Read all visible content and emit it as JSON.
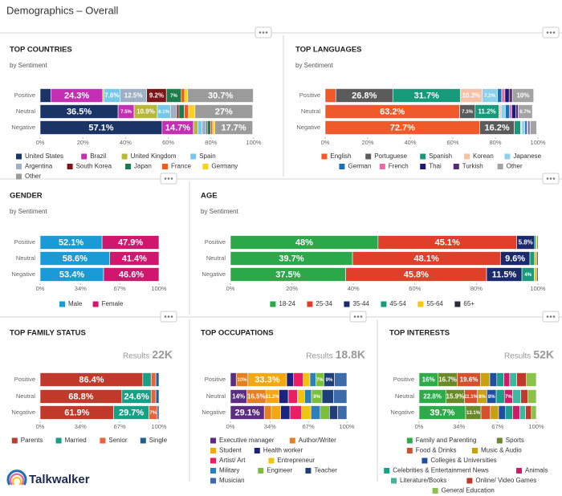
{
  "header": {
    "title": "Demographics – Overall"
  },
  "footer": {
    "brand": "Talkwalker"
  },
  "chart_data": [
    {
      "type": "bar",
      "orientation": "horizontal",
      "stacked": true,
      "title": "TOP COUNTRIES",
      "subtitle": "by Sentiment",
      "categories": [
        "Positive",
        "Neutral",
        "Negative"
      ],
      "xlim": [
        0,
        100
      ],
      "xticks": [
        {
          "value": 0,
          "label": "0%"
        },
        {
          "value": 20,
          "label": "20%"
        },
        {
          "value": 40,
          "label": "40%"
        },
        {
          "value": 60,
          "label": "60%"
        },
        {
          "value": 80,
          "label": "80%"
        },
        {
          "value": 100,
          "label": "100%"
        }
      ],
      "series": [
        {
          "name": "United States",
          "color": "#1b3466",
          "values": [
            5,
            36.5,
            57.1
          ],
          "value_labels": [
            null,
            "36.5%",
            "57.1%"
          ]
        },
        {
          "name": "Brazil",
          "color": "#c42fb4",
          "values": [
            24.3,
            7.5,
            14.7
          ],
          "value_labels": [
            "24.3%",
            "7.5%",
            "14.7%"
          ]
        },
        {
          "name": "United Kingdom",
          "color": "#b7b935",
          "values": [
            0.5,
            10.9,
            2
          ],
          "value_labels": [
            null,
            "10.9%",
            null
          ]
        },
        {
          "name": "Spain",
          "color": "#74c8ea",
          "values": [
            7.6,
            6.1,
            2
          ],
          "value_labels": [
            "7.6%",
            "6.1%",
            null
          ]
        },
        {
          "name": "Argentina",
          "color": "#9fb0c4",
          "values": [
            12.5,
            3,
            2
          ],
          "value_labels": [
            "12.5%",
            null,
            null
          ]
        },
        {
          "name": "South Korea",
          "color": "#7a1518",
          "values": [
            9.2,
            1,
            0.5
          ],
          "value_labels": [
            "9.2%",
            null,
            null
          ]
        },
        {
          "name": "Japan",
          "color": "#1e7b4b",
          "values": [
            7,
            2.5,
            1.5
          ],
          "value_labels": [
            "7%",
            null,
            null
          ]
        },
        {
          "name": "France",
          "color": "#f05a1e",
          "values": [
            1.5,
            2,
            1
          ],
          "value_labels": [
            null,
            null,
            null
          ]
        },
        {
          "name": "Germany",
          "color": "#f7d31e",
          "values": [
            1.5,
            3,
            1
          ],
          "value_labels": [
            null,
            null,
            null
          ]
        },
        {
          "name": "Other",
          "color": "#9b9b9b",
          "values": [
            30.7,
            27,
            17.7
          ],
          "value_labels": [
            "30.7%",
            "27%",
            "17.7%"
          ]
        }
      ]
    },
    {
      "type": "bar",
      "orientation": "horizontal",
      "stacked": true,
      "title": "TOP LANGUAGES",
      "subtitle": "by Sentiment",
      "categories": [
        "Positive",
        "Neutral",
        "Negative"
      ],
      "xlim": [
        0,
        100
      ],
      "xticks": [
        {
          "value": 0,
          "label": "0%"
        },
        {
          "value": 20,
          "label": "20%"
        },
        {
          "value": 40,
          "label": "40%"
        },
        {
          "value": 60,
          "label": "60%"
        },
        {
          "value": 80,
          "label": "80%"
        },
        {
          "value": 100,
          "label": "100%"
        }
      ],
      "series": [
        {
          "name": "English",
          "color": "#f05a2a",
          "values": [
            5,
            63.2,
            72.7
          ],
          "value_labels": [
            null,
            "63.2%",
            "72.7%"
          ]
        },
        {
          "name": "Portuguese",
          "color": "#5b5b5b",
          "values": [
            26.8,
            7.3,
            16.2
          ],
          "value_labels": [
            "26.8%",
            "7.3%",
            "16.2%"
          ]
        },
        {
          "name": "Spanish",
          "color": "#179a7a",
          "values": [
            31.7,
            11.2,
            3
          ],
          "value_labels": [
            "31.7%",
            "11.2%",
            null
          ]
        },
        {
          "name": "Korean",
          "color": "#f5c1a9",
          "values": [
            10.3,
            1,
            0.5
          ],
          "value_labels": [
            "10.3%",
            null,
            null
          ]
        },
        {
          "name": "Japanese",
          "color": "#8fd1eb",
          "values": [
            7.2,
            2,
            1.5
          ],
          "value_labels": [
            "7.2%",
            null,
            null
          ]
        },
        {
          "name": "German",
          "color": "#1f6fb3",
          "values": [
            2,
            2,
            1
          ],
          "value_labels": [
            null,
            null,
            null
          ]
        },
        {
          "name": "French",
          "color": "#e86aa8",
          "values": [
            1.5,
            1,
            0.5
          ],
          "value_labels": [
            null,
            null,
            null
          ]
        },
        {
          "name": "Thai",
          "color": "#1a1a7a",
          "values": [
            2,
            2,
            0.5
          ],
          "value_labels": [
            null,
            null,
            null
          ]
        },
        {
          "name": "Turkish",
          "color": "#5a2a7a",
          "values": [
            1.5,
            1,
            0.5
          ],
          "value_labels": [
            null,
            null,
            null
          ]
        },
        {
          "name": "Other",
          "color": "#a3a3a3",
          "values": [
            10,
            6.7,
            3
          ],
          "value_labels": [
            "10%",
            "6.7%",
            null
          ]
        }
      ]
    },
    {
      "type": "bar",
      "orientation": "horizontal",
      "stacked": true,
      "title": "GENDER",
      "subtitle": "by Sentiment",
      "categories": [
        "Positive",
        "Neutral",
        "Negative"
      ],
      "xlim": [
        0,
        100
      ],
      "xticks": [
        {
          "value": 0,
          "label": "0%"
        },
        {
          "value": 34,
          "label": "34%"
        },
        {
          "value": 67,
          "label": "67%"
        },
        {
          "value": 100,
          "label": "100%"
        }
      ],
      "series": [
        {
          "name": "Male",
          "color": "#1a9ad6",
          "values": [
            52.1,
            58.6,
            53.4
          ],
          "value_labels": [
            "52.1%",
            "58.6%",
            "53.4%"
          ]
        },
        {
          "name": "Female",
          "color": "#d1166e",
          "values": [
            47.9,
            41.4,
            46.6
          ],
          "value_labels": [
            "47.9%",
            "41.4%",
            "46.6%"
          ]
        }
      ]
    },
    {
      "type": "bar",
      "orientation": "horizontal",
      "stacked": true,
      "title": "AGE",
      "subtitle": "by Sentiment",
      "categories": [
        "Positive",
        "Neutral",
        "Negative"
      ],
      "xlim": [
        0,
        100
      ],
      "xticks": [
        {
          "value": 0,
          "label": "0%"
        },
        {
          "value": 20,
          "label": "20%"
        },
        {
          "value": 40,
          "label": "40%"
        },
        {
          "value": 60,
          "label": "60%"
        },
        {
          "value": 80,
          "label": "80%"
        },
        {
          "value": 100,
          "label": "100%"
        }
      ],
      "series": [
        {
          "name": "18-24",
          "color": "#2aa84a",
          "values": [
            48,
            39.7,
            37.5
          ],
          "value_labels": [
            "48%",
            "39.7%",
            "37.5%"
          ]
        },
        {
          "name": "25-34",
          "color": "#e0402a",
          "values": [
            45.1,
            48.1,
            45.8
          ],
          "value_labels": [
            "45.1%",
            "48.1%",
            "45.8%"
          ]
        },
        {
          "name": "35-44",
          "color": "#1a2a6a",
          "values": [
            5.8,
            9.6,
            11.5
          ],
          "value_labels": [
            "5.8%",
            "9.6%",
            "11.5%"
          ]
        },
        {
          "name": "45-54",
          "color": "#1a9a7a",
          "values": [
            0.5,
            1.5,
            4
          ],
          "value_labels": [
            null,
            null,
            "4%"
          ]
        },
        {
          "name": "55-64",
          "color": "#f5c518",
          "values": [
            0.3,
            0.7,
            0.8
          ],
          "value_labels": [
            null,
            null,
            null
          ]
        },
        {
          "name": "65+",
          "color": "#2a2a3a",
          "values": [
            0.3,
            0.4,
            0.4
          ],
          "value_labels": [
            null,
            null,
            null
          ]
        }
      ]
    },
    {
      "type": "bar",
      "orientation": "horizontal",
      "stacked": true,
      "title": "TOP FAMILY STATUS",
      "results_label": "Results",
      "results": "22K",
      "categories": [
        "Positive",
        "Neutral",
        "Negative"
      ],
      "xlim": [
        0,
        100
      ],
      "xticks": [
        {
          "value": 0,
          "label": "0%"
        },
        {
          "value": 34,
          "label": "34%"
        },
        {
          "value": 67,
          "label": "67%"
        },
        {
          "value": 100,
          "label": "100%"
        }
      ],
      "series": [
        {
          "name": "Parents",
          "color": "#c0392b",
          "values": [
            86.4,
            68.8,
            61.9
          ],
          "value_labels": [
            "86.4%",
            "68.8%",
            "61.9%"
          ]
        },
        {
          "name": "Married",
          "color": "#16a085",
          "values": [
            7,
            24.6,
            29.7
          ],
          "value_labels": [
            null,
            "24.6%",
            "29.7%"
          ]
        },
        {
          "name": "Senior",
          "color": "#e8623a",
          "values": [
            4,
            4,
            7
          ],
          "value_labels": [
            null,
            null,
            "7%"
          ]
        },
        {
          "name": "Single",
          "color": "#1e5f99",
          "values": [
            2.6,
            2.6,
            1.4
          ],
          "value_labels": [
            null,
            null,
            null
          ]
        }
      ]
    },
    {
      "type": "bar",
      "orientation": "horizontal",
      "stacked": true,
      "title": "TOP OCCUPATIONS",
      "results_label": "Results",
      "results": "18.8K",
      "categories": [
        "Positive",
        "Neutral",
        "Negative"
      ],
      "xlim": [
        0,
        100
      ],
      "xticks": [
        {
          "value": 0,
          "label": "0%"
        },
        {
          "value": 34,
          "label": "34%"
        },
        {
          "value": 67,
          "label": "67%"
        },
        {
          "value": 100,
          "label": "100%"
        }
      ],
      "series": [
        {
          "name": "Executive manager",
          "color": "#5b2c83",
          "values": [
            5,
            14,
            29.1
          ],
          "value_labels": [
            null,
            "14%",
            "29.1%"
          ]
        },
        {
          "name": "Author/Writer",
          "color": "#e67e22",
          "values": [
            10,
            16.5,
            6
          ],
          "value_labels": [
            "10%",
            "16.5%",
            null
          ]
        },
        {
          "name": "Student",
          "color": "#f3a712",
          "values": [
            33.3,
            11.2,
            8
          ],
          "value_labels": [
            "33.3%",
            "11.2%",
            null
          ]
        },
        {
          "name": "Health worker",
          "color": "#1a237e",
          "values": [
            6,
            8,
            8
          ],
          "value_labels": [
            null,
            null,
            null
          ]
        },
        {
          "name": "Artist/ Art",
          "color": "#e91e63",
          "values": [
            8,
            8,
            10
          ],
          "value_labels": [
            null,
            null,
            null
          ]
        },
        {
          "name": "Entrepreneur",
          "color": "#f1c40f",
          "values": [
            6,
            6,
            8
          ],
          "value_labels": [
            null,
            null,
            null
          ]
        },
        {
          "name": "Military",
          "color": "#2c7fb8",
          "values": [
            5,
            6,
            8
          ],
          "value_labels": [
            null,
            null,
            null
          ]
        },
        {
          "name": "Engineer",
          "color": "#7cbf3a",
          "values": [
            7,
            9,
            8
          ],
          "value_labels": [
            "7%",
            "9%",
            null
          ]
        },
        {
          "name": "Teacher",
          "color": "#1f3f7a",
          "values": [
            9,
            10,
            7
          ],
          "value_labels": [
            "9%",
            null,
            null
          ]
        },
        {
          "name": "Musician",
          "color": "#3d6aa8",
          "values": [
            10.7,
            11.3,
            7.9
          ],
          "value_labels": [
            null,
            null,
            null
          ]
        }
      ]
    },
    {
      "type": "bar",
      "orientation": "horizontal",
      "stacked": true,
      "title": "TOP INTERESTS",
      "results_label": "Results",
      "results": "52K",
      "categories": [
        "Positive",
        "Neutral",
        "Negative"
      ],
      "xlim": [
        0,
        100
      ],
      "xticks": [
        {
          "value": 0,
          "label": "0%"
        },
        {
          "value": 34,
          "label": "34%"
        },
        {
          "value": 67,
          "label": "67%"
        },
        {
          "value": 100,
          "label": "100%"
        }
      ],
      "series": [
        {
          "name": "Family and Parenting",
          "color": "#2eaa4a",
          "values": [
            16,
            22.8,
            39.7
          ],
          "value_labels": [
            "16%",
            "22.8%",
            "39.7%"
          ]
        },
        {
          "name": "Sports",
          "color": "#6a8a2a",
          "values": [
            16.7,
            15.9,
            13.1
          ],
          "value_labels": [
            "16.7%",
            "15.9%",
            "13.1%"
          ]
        },
        {
          "name": "Food & Drinks",
          "color": "#d4502a",
          "values": [
            19.6,
            11.1,
            8
          ],
          "value_labels": [
            "19.6%",
            "11.1%",
            null
          ]
        },
        {
          "name": "Music & Audio",
          "color": "#c8a010",
          "values": [
            8,
            8,
            7
          ],
          "value_labels": [
            null,
            "8%",
            null
          ]
        },
        {
          "name": "Colleges & Universities",
          "color": "#1f4fa0",
          "values": [
            6,
            8,
            6
          ],
          "value_labels": [
            null,
            "8%",
            null
          ]
        },
        {
          "name": "Celebrities & Entertainment News",
          "color": "#1aa08a",
          "values": [
            6,
            7,
            6
          ],
          "value_labels": [
            null,
            null,
            null
          ]
        },
        {
          "name": "Animals",
          "color": "#d01a6a",
          "values": [
            5,
            7,
            6
          ],
          "value_labels": [
            null,
            "7%",
            null
          ]
        },
        {
          "name": "Literature/Books",
          "color": "#3ab8a0",
          "values": [
            6,
            7,
            5
          ],
          "value_labels": [
            null,
            null,
            null
          ]
        },
        {
          "name": "Online/ Video Games",
          "color": "#c0392b",
          "values": [
            8,
            6,
            5
          ],
          "value_labels": [
            null,
            null,
            null
          ]
        },
        {
          "name": "General Education",
          "color": "#8bc34a",
          "values": [
            8.7,
            7.2,
            4.2
          ],
          "value_labels": [
            null,
            null,
            null
          ]
        }
      ]
    }
  ]
}
